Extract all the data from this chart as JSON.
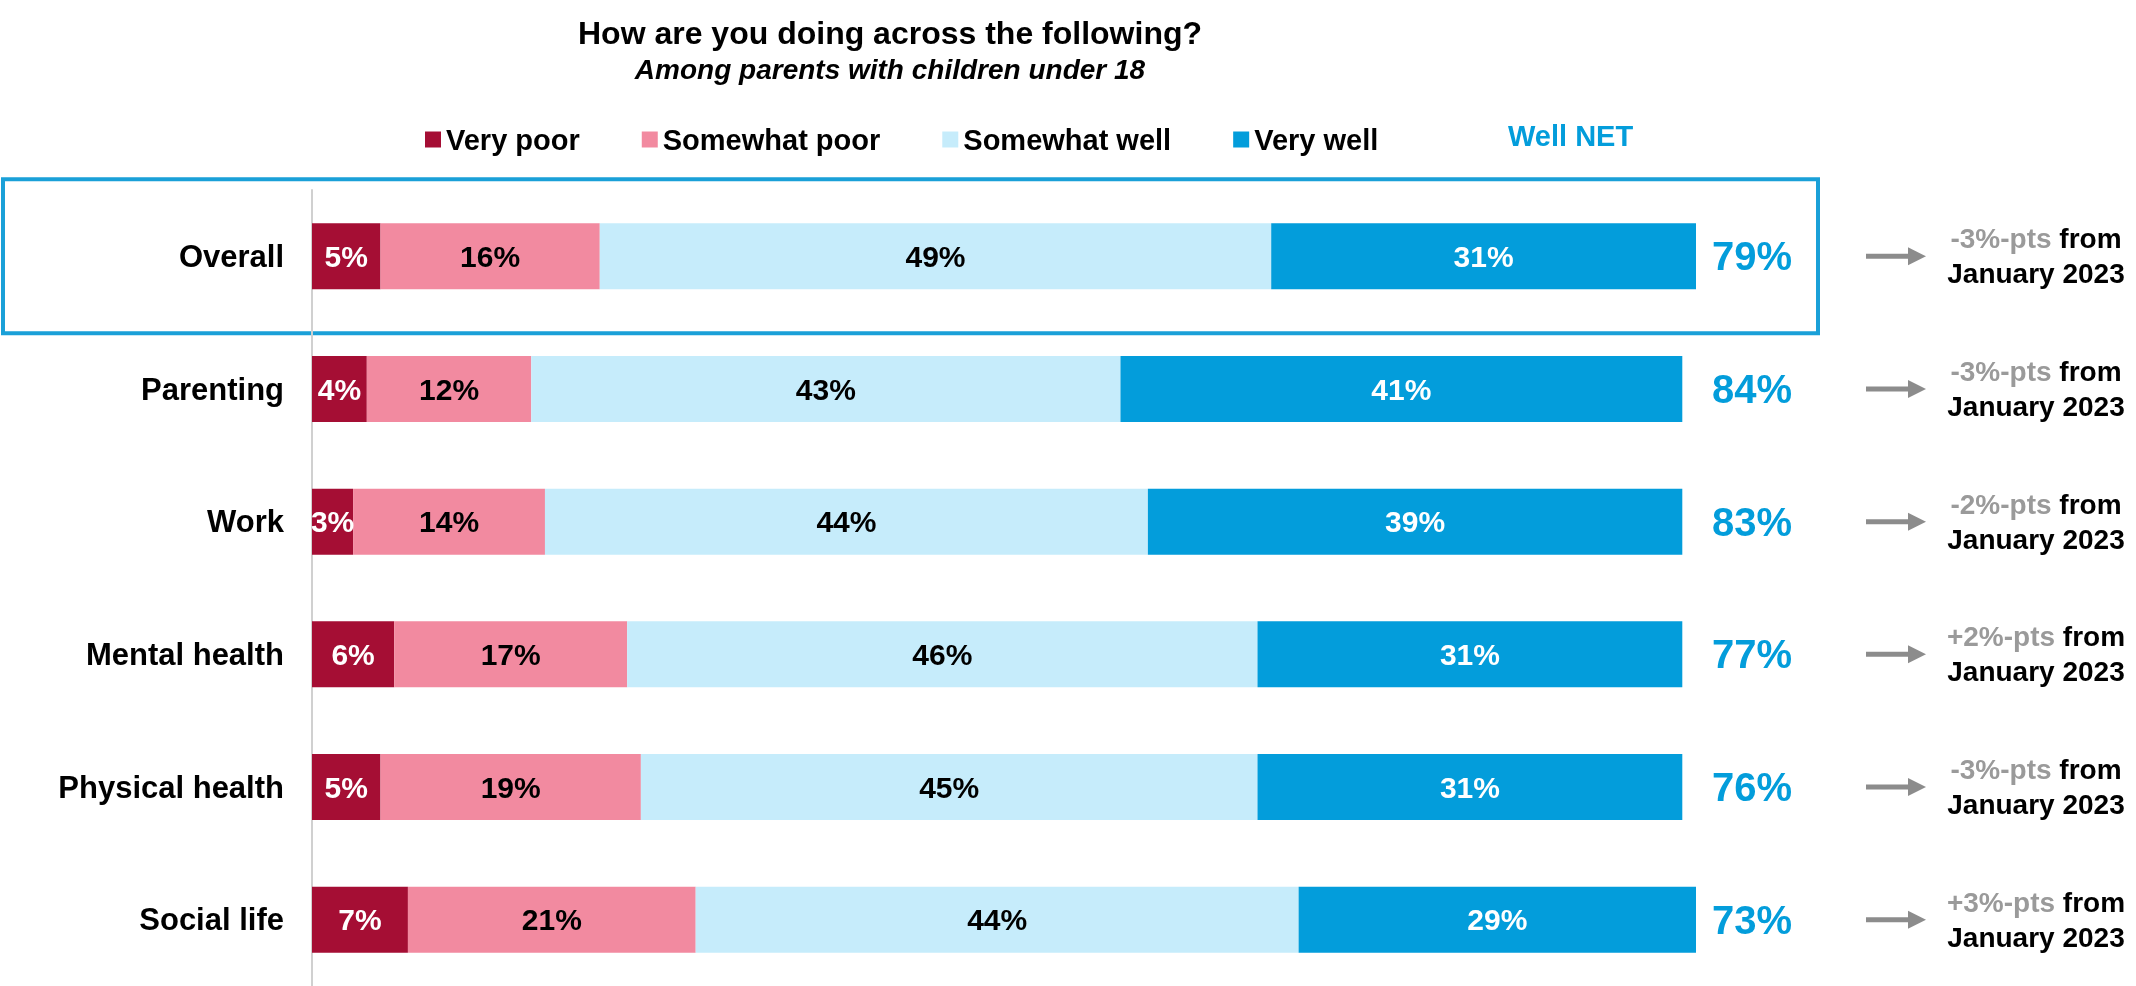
{
  "chart_data": {
    "type": "bar",
    "orientation": "horizontal",
    "stacked": true,
    "title": "How are you doing across the following?",
    "subtitle": "Among parents with children under 18",
    "categories": [
      "Overall",
      "Parenting",
      "Work",
      "Mental health",
      "Physical health",
      "Social life"
    ],
    "series": [
      {
        "name": "Very poor",
        "color": "#a50e34",
        "values": [
          5,
          4,
          3,
          6,
          5,
          7
        ],
        "value_labels": [
          "5%",
          "4%",
          "3%",
          "6%",
          "5%",
          "7%"
        ]
      },
      {
        "name": "Somewhat poor",
        "color": "#f28aa0",
        "values": [
          16,
          12,
          14,
          17,
          19,
          21
        ],
        "value_labels": [
          "16%",
          "12%",
          "14%",
          "17%",
          "19%",
          "21%"
        ]
      },
      {
        "name": "Somewhat well",
        "color": "#c6ecfb",
        "values": [
          49,
          43,
          44,
          46,
          45,
          44
        ],
        "value_labels": [
          "49%",
          "43%",
          "44%",
          "46%",
          "45%",
          "44%"
        ]
      },
      {
        "name": "Very well",
        "color": "#039ddb",
        "values": [
          31,
          41,
          39,
          31,
          31,
          29
        ],
        "value_labels": [
          "31%",
          "41%",
          "39%",
          "31%",
          "31%",
          "29%"
        ]
      }
    ],
    "legend": "top",
    "legend_title": "Well NET",
    "annotations": [
      "79%",
      "84%",
      "83%",
      "77%",
      "76%",
      "73%",
      "-3%-pts from\nJanuary 2023",
      "-3%-pts from\nJanuary 2023",
      "-2%-pts from\nJanuary 2023",
      "+2%-pts from\nJanuary 2023",
      "-3%-pts from\nJanuary 2023",
      "+3%-pts from\nJanuary 2023"
    ]
  }
}
